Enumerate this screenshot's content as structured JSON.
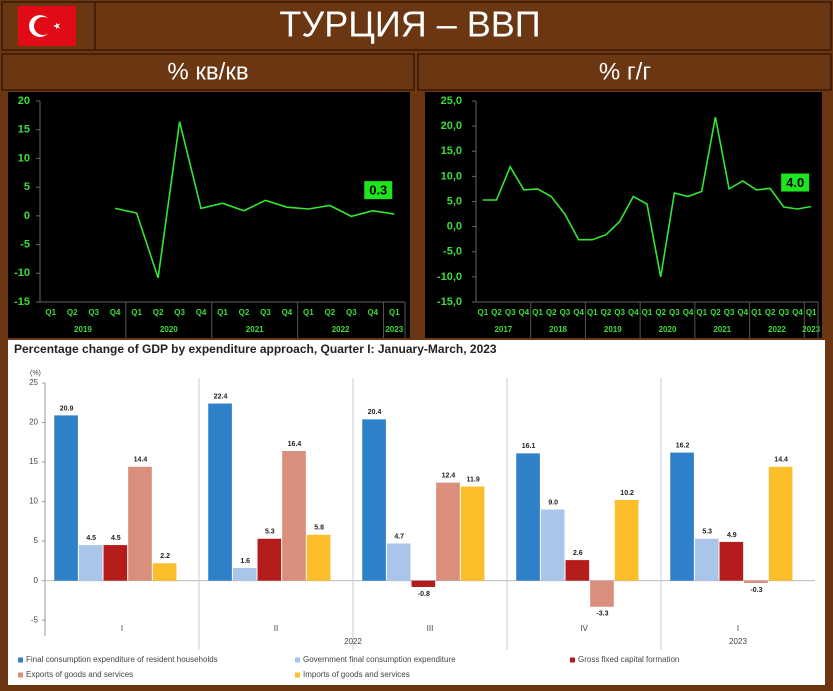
{
  "header": {
    "title": "ТУРЦИЯ – ВВП"
  },
  "chart_data": [
    {
      "type": "line",
      "title": "% кв/кв",
      "categories": [
        "Q1",
        "Q2",
        "Q3",
        "Q4",
        "Q1",
        "Q2",
        "Q3",
        "Q4",
        "Q1",
        "Q2",
        "Q3",
        "Q4",
        "Q1",
        "Q2",
        "Q3",
        "Q4",
        "Q1"
      ],
      "years": [
        "2019",
        "2020",
        "2021",
        "2022",
        "2023"
      ],
      "values": [
        null,
        null,
        null,
        1.3,
        0.5,
        -10.8,
        16.4,
        1.3,
        2.2,
        0.9,
        2.7,
        1.5,
        1.2,
        1.8,
        -0.1,
        0.9,
        0.3
      ],
      "color": "#33e633",
      "annotation": "0.3",
      "ylim": [
        -15,
        20
      ],
      "yticks": [
        -15,
        -10,
        -5,
        0,
        5,
        10,
        15,
        20
      ]
    },
    {
      "type": "line",
      "title": "% г/г",
      "categories": [
        "Q1",
        "Q2",
        "Q3",
        "Q4",
        "Q1",
        "Q2",
        "Q3",
        "Q4",
        "Q1",
        "Q2",
        "Q3",
        "Q4",
        "Q1",
        "Q2",
        "Q3",
        "Q4",
        "Q1",
        "Q2",
        "Q3",
        "Q4",
        "Q1",
        "Q2",
        "Q3",
        "Q4",
        "Q1"
      ],
      "years": [
        "2017",
        "2018",
        "2019",
        "2020",
        "2021",
        "2022",
        "2023"
      ],
      "values": [
        5.3,
        5.3,
        11.9,
        7.3,
        7.5,
        6.0,
        2.5,
        -2.6,
        -2.6,
        -1.6,
        1.0,
        6.0,
        4.5,
        -10.0,
        6.7,
        6.0,
        7.0,
        21.8,
        7.5,
        9.1,
        7.3,
        7.6,
        3.9,
        3.5,
        4.0
      ],
      "color": "#33e633",
      "annotation": "4.0",
      "ylim": [
        -15,
        25
      ],
      "yticks": [
        {
          "value": -15,
          "label": "-15,0"
        },
        {
          "value": -10,
          "label": "-10,0"
        },
        {
          "value": -5,
          "label": "-5,0"
        },
        {
          "value": 0,
          "label": "0,0"
        },
        {
          "value": 5,
          "label": "5,0"
        },
        {
          "value": 10,
          "label": "10,0"
        },
        {
          "value": 15,
          "label": "15,0"
        },
        {
          "value": 20,
          "label": "20,0"
        },
        {
          "value": 25,
          "label": "25,0"
        }
      ]
    },
    {
      "type": "grouped_bar",
      "title": "Percentage change of GDP by expenditure approach, Quarter I: January-March, 2023",
      "unit": "(%)",
      "categories": [
        "I",
        "II",
        "III",
        "IV",
        "I"
      ],
      "groups": [
        "2022",
        "2023"
      ],
      "series": [
        {
          "name": "Final consumption expenditure of resident households",
          "color": "#2e80c8",
          "values": [
            20.9,
            22.4,
            20.4,
            16.1,
            16.2
          ],
          "value_labels": [
            "20.9",
            "22.4",
            "20.4",
            "16.1",
            "16.2"
          ]
        },
        {
          "name": "Government final consumption expenditure",
          "color": "#a9c5ea",
          "values": [
            4.5,
            1.6,
            4.7,
            9.0,
            5.3
          ],
          "value_labels": [
            "4.5",
            "1.6",
            "4.7",
            "9.0",
            "5.3"
          ]
        },
        {
          "name": "Gross fixed capital formation",
          "color": "#b51d1d",
          "values": [
            4.5,
            5.3,
            -0.8,
            2.6,
            4.9
          ],
          "value_labels": [
            "4.5",
            "5.3",
            "-0.8",
            "2.6",
            "4.9"
          ]
        },
        {
          "name": "Exports of goods and services",
          "color": "#da8f7d",
          "values": [
            14.4,
            16.4,
            12.4,
            -3.3,
            -0.3
          ],
          "value_labels": [
            "14.4",
            "16.4",
            "12.4",
            "-3.3",
            "-0.3"
          ]
        },
        {
          "name": "Imports of goods and services",
          "color": "#fbbd2a",
          "values": [
            2.2,
            5.8,
            11.9,
            10.2,
            14.4
          ],
          "value_labels": [
            "2.2",
            "5.8",
            "11.9",
            "10.2",
            "14.4"
          ]
        }
      ],
      "ylim": [
        -7,
        25
      ],
      "yticks": [
        -5,
        0,
        5,
        10,
        15,
        20,
        25
      ]
    }
  ]
}
